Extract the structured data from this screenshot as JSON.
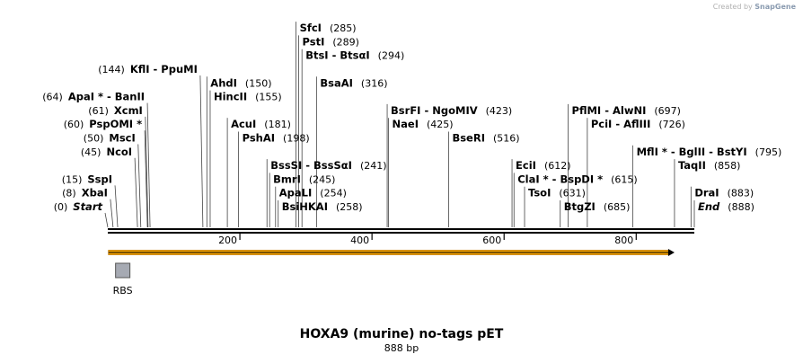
{
  "credit": {
    "prefix": "Created by",
    "brand": "SnapGene"
  },
  "title": "HOXA9 (murine) no-tags pET",
  "length_label": "888 bp",
  "sequence_length": 888,
  "axis_ticks": [
    {
      "label": "200",
      "pos": 200
    },
    {
      "label": "400",
      "pos": 400
    },
    {
      "label": "600",
      "pos": 600
    },
    {
      "label": "800",
      "pos": 800
    }
  ],
  "orf": {
    "start": 1,
    "end": 858,
    "color": "#f4a300"
  },
  "features": [
    {
      "label": "RBS",
      "pos": 24,
      "color": "#a6aab3"
    }
  ],
  "sites": [
    {
      "name": "Start",
      "pos_text": "(0)",
      "pos": 0,
      "row": 0,
      "side": "left",
      "italic": true
    },
    {
      "name": "XbaI",
      "pos_text": "(8)",
      "pos": 8,
      "row": 1,
      "side": "left"
    },
    {
      "name": "SspI",
      "pos_text": "(15)",
      "pos": 15,
      "row": 2,
      "side": "left"
    },
    {
      "name": "NcoI",
      "pos_text": "(45)",
      "pos": 45,
      "row": 4,
      "side": "left"
    },
    {
      "name": "MscI",
      "pos_text": "(50)",
      "pos": 50,
      "row": 5,
      "side": "left"
    },
    {
      "name": "PspOMI *",
      "pos_text": "(60)",
      "pos": 60,
      "row": 6,
      "side": "left"
    },
    {
      "name": "XcmI",
      "pos_text": "(61)",
      "pos": 61,
      "row": 7,
      "side": "left"
    },
    {
      "name": "ApaI * - BanII",
      "pos_text": "(64)",
      "pos": 64,
      "row": 8,
      "side": "left"
    },
    {
      "name": "KflI - PpuMI",
      "pos_text": "(144)",
      "pos": 144,
      "row": 10,
      "side": "left"
    },
    {
      "name": "AhdI",
      "pos_text": "(150)",
      "pos": 150,
      "row": 9,
      "side": "right"
    },
    {
      "name": "HincII",
      "pos_text": "(155)",
      "pos": 155,
      "row": 8,
      "side": "right"
    },
    {
      "name": "AcuI",
      "pos_text": "(181)",
      "pos": 181,
      "row": 6,
      "side": "right"
    },
    {
      "name": "PshAI",
      "pos_text": "(198)",
      "pos": 198,
      "row": 5,
      "side": "right"
    },
    {
      "name": "BssSI - BssSαI",
      "pos_text": "(241)",
      "pos": 241,
      "row": 3,
      "side": "right"
    },
    {
      "name": "BmrI",
      "pos_text": "(245)",
      "pos": 245,
      "row": 2,
      "side": "right"
    },
    {
      "name": "ApaLI",
      "pos_text": "(254)",
      "pos": 254,
      "row": 1,
      "side": "right"
    },
    {
      "name": "BsiHKAI",
      "pos_text": "(258)",
      "pos": 258,
      "row": 0,
      "side": "right"
    },
    {
      "name": "SfcI",
      "pos_text": "(285)",
      "pos": 285,
      "row": 13,
      "side": "right"
    },
    {
      "name": "PstI",
      "pos_text": "(289)",
      "pos": 289,
      "row": 12,
      "side": "right"
    },
    {
      "name": "BtsI - BtsαI",
      "pos_text": "(294)",
      "pos": 294,
      "row": 11,
      "side": "right"
    },
    {
      "name": "BsaAI",
      "pos_text": "(316)",
      "pos": 316,
      "row": 9,
      "side": "right"
    },
    {
      "name": "BsrFI - NgoMIV",
      "pos_text": "(423)",
      "pos": 423,
      "row": 7,
      "side": "right"
    },
    {
      "name": "NaeI",
      "pos_text": "(425)",
      "pos": 425,
      "row": 6,
      "side": "right"
    },
    {
      "name": "BseRI",
      "pos_text": "(516)",
      "pos": 516,
      "row": 5,
      "side": "right"
    },
    {
      "name": "EciI",
      "pos_text": "(612)",
      "pos": 612,
      "row": 3,
      "side": "right"
    },
    {
      "name": "ClaI * - BspDI *",
      "pos_text": "(615)",
      "pos": 615,
      "row": 2,
      "side": "right"
    },
    {
      "name": "TsoI",
      "pos_text": "(631)",
      "pos": 631,
      "row": 1,
      "side": "right"
    },
    {
      "name": "BtgZI",
      "pos_text": "(685)",
      "pos": 685,
      "row": 0,
      "side": "right"
    },
    {
      "name": "PflMI - AlwNI",
      "pos_text": "(697)",
      "pos": 697,
      "row": 7,
      "side": "right"
    },
    {
      "name": "PciI - AflIII",
      "pos_text": "(726)",
      "pos": 726,
      "row": 6,
      "side": "right"
    },
    {
      "name": "MflI * - BglII - BstYI",
      "pos_text": "(795)",
      "pos": 795,
      "row": 4,
      "side": "right"
    },
    {
      "name": "TaqII",
      "pos_text": "(858)",
      "pos": 858,
      "row": 3,
      "side": "right"
    },
    {
      "name": "DraI",
      "pos_text": "(883)",
      "pos": 883,
      "row": 1,
      "side": "right"
    },
    {
      "name": "End",
      "pos_text": "(888)",
      "pos": 888,
      "row": 0,
      "side": "right",
      "italic": true
    }
  ]
}
